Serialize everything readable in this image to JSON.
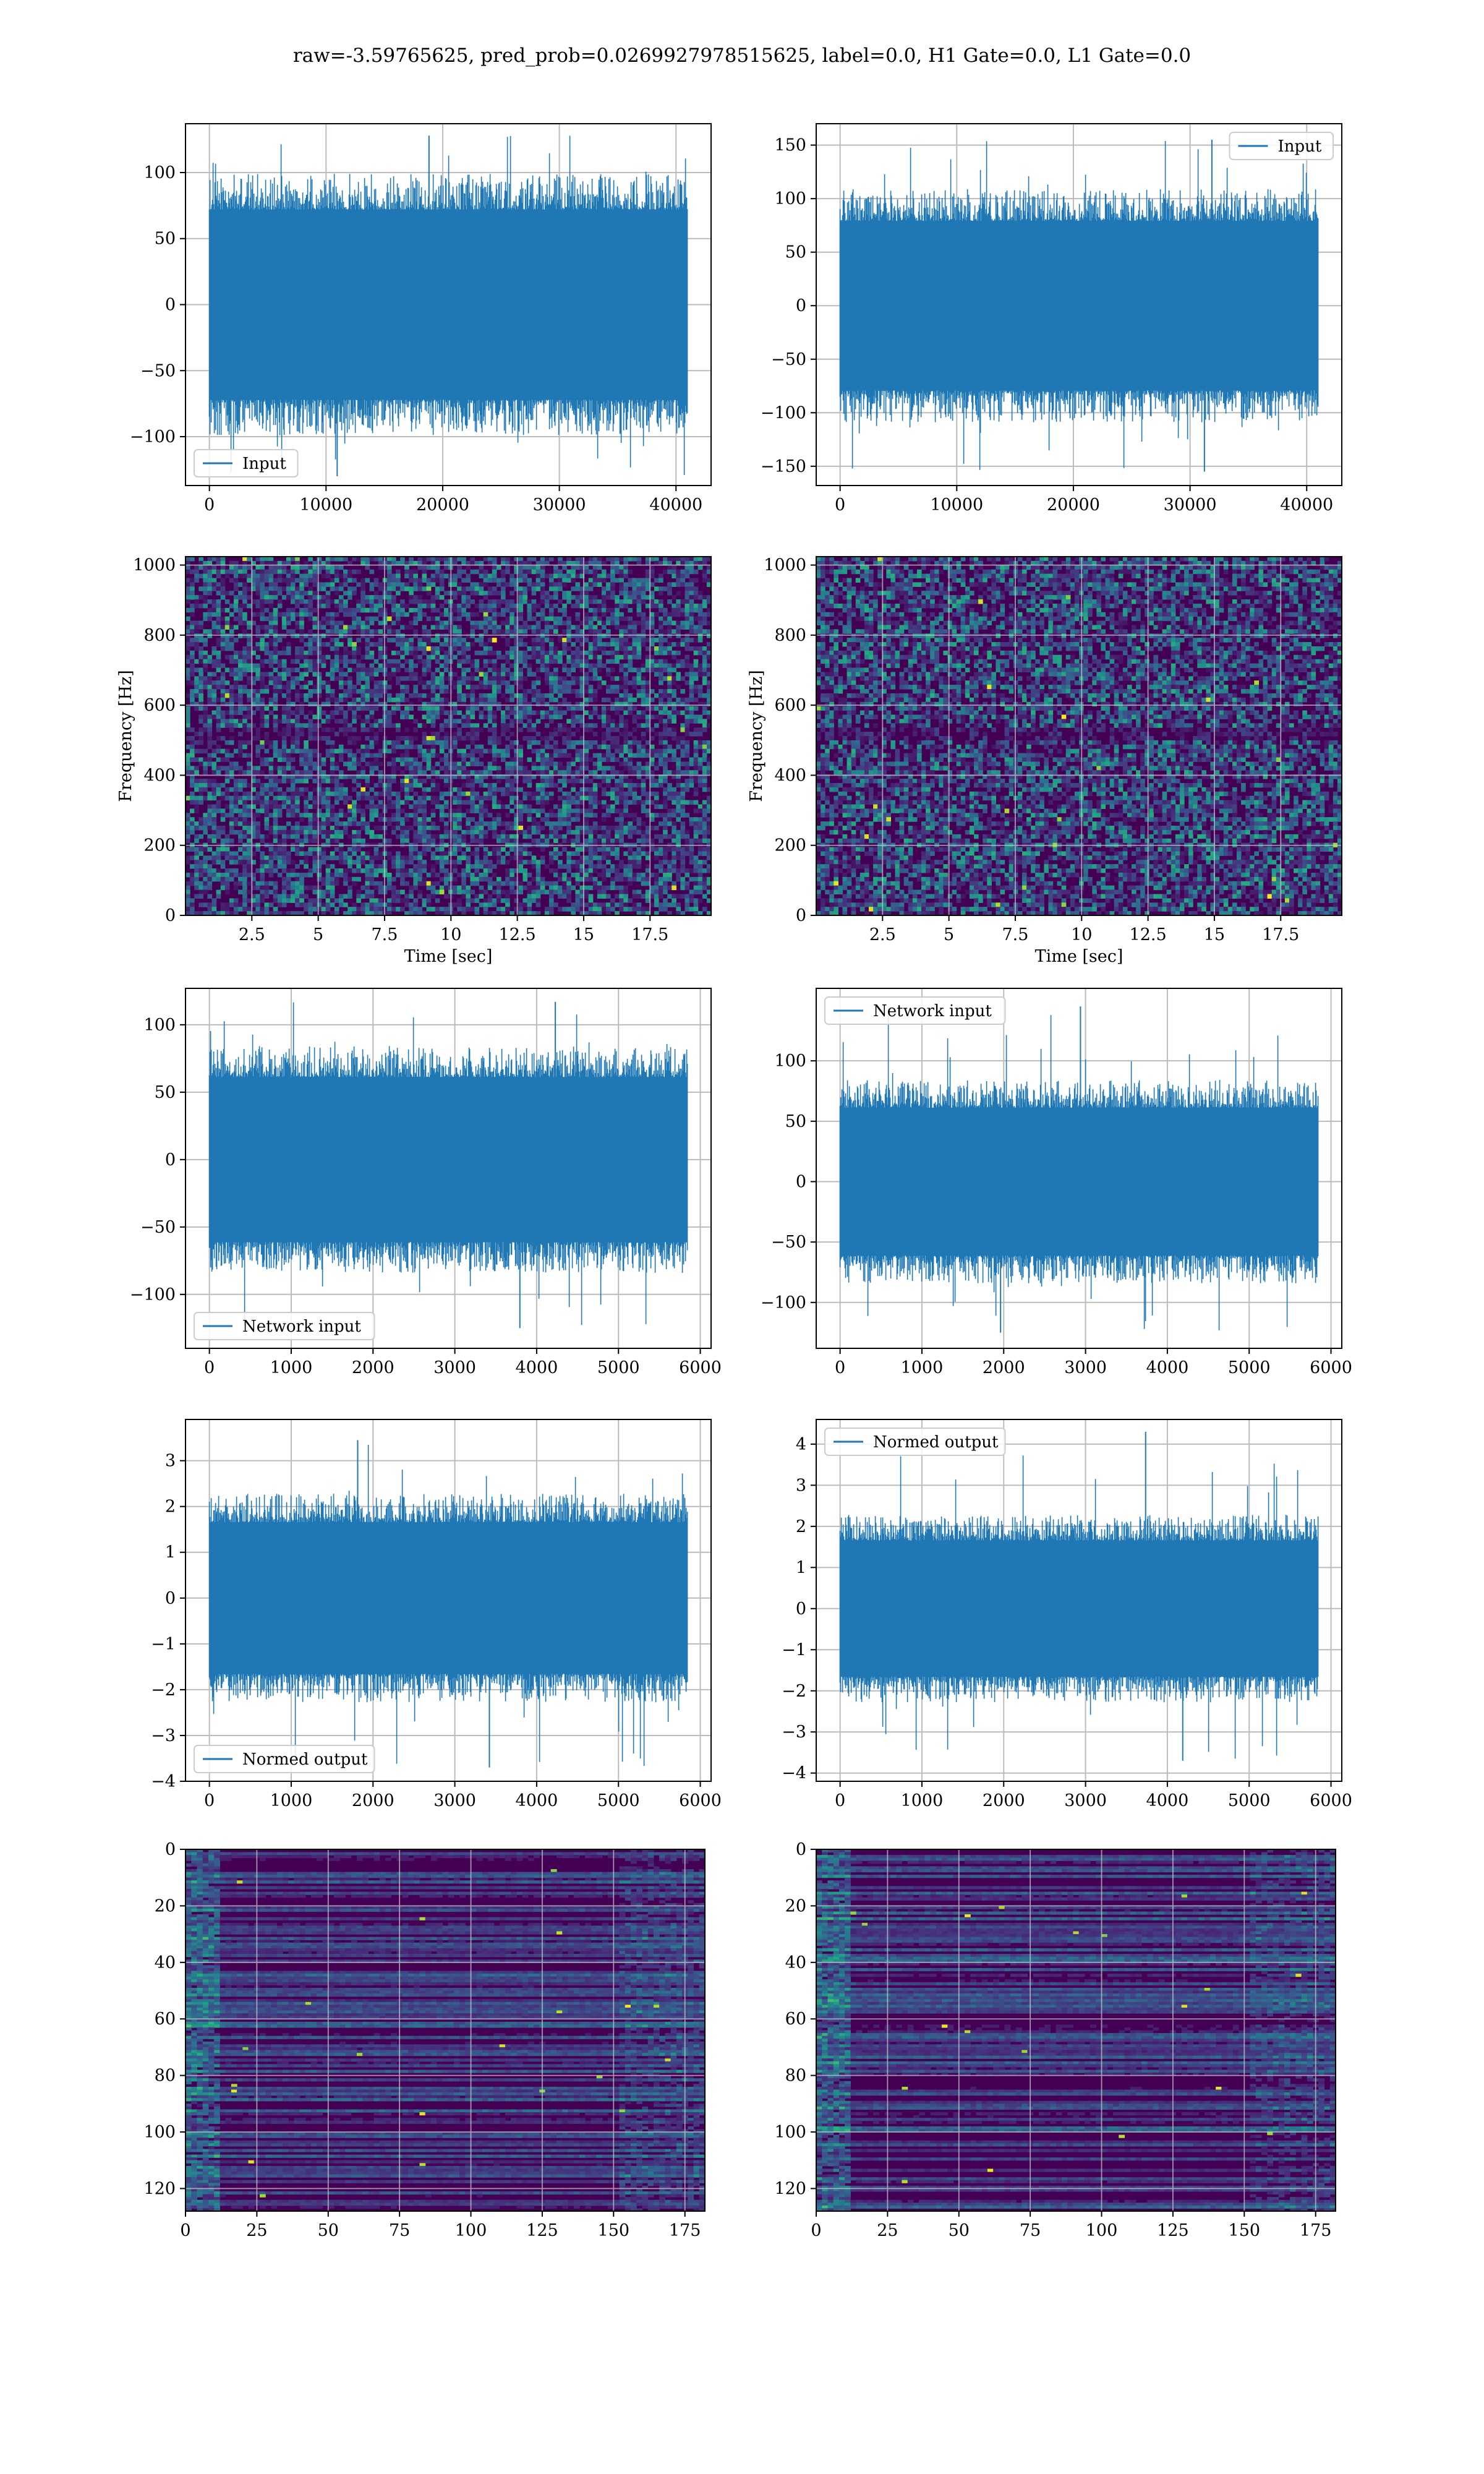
{
  "figure": {
    "suptitle": "raw=-3.59765625, pred_prob=0.0269927978515625, label=0.0, H1 Gate=0.0, L1 Gate=0.0"
  },
  "colors": {
    "line": "#1f77b4",
    "grid": "#b0b0b0",
    "viridis": [
      "#440154",
      "#472d7b",
      "#3b528b",
      "#2c728e",
      "#21918c",
      "#28ae80",
      "#5ec962",
      "#addc30",
      "#fde725"
    ]
  },
  "chart_data": [
    {
      "id": "p1",
      "type": "line",
      "x_range": [
        0,
        40960
      ],
      "xlim": [
        -2048,
        43008
      ],
      "ylim": [
        -137,
        137
      ],
      "xticks": [
        0,
        10000,
        20000,
        30000,
        40000
      ],
      "yticks": [
        -100,
        -50,
        0,
        50,
        100
      ],
      "series": [
        {
          "name": "Input",
          "amplitude": 100,
          "peak_min": -130,
          "peak_max": 128
        }
      ],
      "legend": "lower-left",
      "grid": true,
      "xlabel": "",
      "ylabel": ""
    },
    {
      "id": "p2",
      "type": "line",
      "x_range": [
        0,
        40960
      ],
      "xlim": [
        -2048,
        43008
      ],
      "ylim": [
        -168,
        170
      ],
      "xticks": [
        0,
        10000,
        20000,
        30000,
        40000
      ],
      "yticks": [
        -150,
        -100,
        -50,
        0,
        50,
        100,
        150
      ],
      "series": [
        {
          "name": "Input",
          "amplitude": 110,
          "peak_min": -155,
          "peak_max": 155
        }
      ],
      "legend": "upper-right",
      "grid": true,
      "xlabel": "",
      "ylabel": ""
    },
    {
      "id": "p3",
      "type": "heatmap",
      "xlim": [
        0,
        19.8
      ],
      "ylim": [
        0,
        1024
      ],
      "xticks": [
        2.5,
        5.0,
        7.5,
        10.0,
        12.5,
        15.0,
        17.5
      ],
      "yticks": [
        0,
        200,
        400,
        600,
        800,
        1000
      ],
      "xlabel": "Time [sec]",
      "ylabel": "Frequency [Hz]",
      "grid": true
    },
    {
      "id": "p4",
      "type": "heatmap",
      "xlim": [
        0,
        19.8
      ],
      "ylim": [
        0,
        1024
      ],
      "xticks": [
        2.5,
        5.0,
        7.5,
        10.0,
        12.5,
        15.0,
        17.5
      ],
      "yticks": [
        0,
        200,
        400,
        600,
        800,
        1000
      ],
      "xlabel": "Time [sec]",
      "ylabel": "Frequency [Hz]",
      "grid": true
    },
    {
      "id": "p5",
      "type": "line",
      "x_range": [
        0,
        5840
      ],
      "xlim": [
        -292,
        6132
      ],
      "ylim": [
        -140,
        127
      ],
      "xticks": [
        0,
        1000,
        2000,
        3000,
        4000,
        5000,
        6000
      ],
      "yticks": [
        -100,
        -50,
        0,
        50,
        100
      ],
      "series": [
        {
          "name": "Network input",
          "amplitude": 85,
          "peak_min": -125,
          "peak_max": 117
        }
      ],
      "legend": "lower-left",
      "grid": true,
      "xlabel": "",
      "ylabel": ""
    },
    {
      "id": "p6",
      "type": "line",
      "x_range": [
        0,
        5840
      ],
      "xlim": [
        -292,
        6132
      ],
      "ylim": [
        -138,
        160
      ],
      "xticks": [
        0,
        1000,
        2000,
        3000,
        4000,
        5000,
        6000
      ],
      "yticks": [
        -100,
        -50,
        0,
        50,
        100
      ],
      "series": [
        {
          "name": "Network input",
          "amplitude": 85,
          "peak_min": -125,
          "peak_max": 145
        }
      ],
      "legend": "upper-left",
      "grid": true,
      "xlabel": "",
      "ylabel": ""
    },
    {
      "id": "p7",
      "type": "line",
      "x_range": [
        0,
        5840
      ],
      "xlim": [
        -292,
        6132
      ],
      "ylim": [
        -4.0,
        3.9
      ],
      "xticks": [
        0,
        1000,
        2000,
        3000,
        4000,
        5000,
        6000
      ],
      "yticks": [
        -4,
        -3,
        -2,
        -1,
        0,
        1,
        2,
        3
      ],
      "series": [
        {
          "name": "Normed output",
          "amplitude": 2.3,
          "peak_min": -3.7,
          "peak_max": 3.45
        }
      ],
      "legend": "lower-left",
      "grid": true,
      "xlabel": "",
      "ylabel": ""
    },
    {
      "id": "p8",
      "type": "line",
      "x_range": [
        0,
        5840
      ],
      "xlim": [
        -292,
        6132
      ],
      "ylim": [
        -4.2,
        4.6
      ],
      "xticks": [
        0,
        1000,
        2000,
        3000,
        4000,
        5000,
        6000
      ],
      "yticks": [
        -4,
        -3,
        -2,
        -1,
        0,
        1,
        2,
        3,
        4
      ],
      "series": [
        {
          "name": "Normed output",
          "amplitude": 2.3,
          "peak_min": -3.7,
          "peak_max": 4.3
        }
      ],
      "legend": "upper-left",
      "grid": true,
      "xlabel": "",
      "ylabel": ""
    },
    {
      "id": "p9",
      "type": "heatmap",
      "xlim": [
        0,
        182
      ],
      "ylim": [
        128,
        0
      ],
      "xticks": [
        0,
        25,
        50,
        75,
        100,
        125,
        150,
        175
      ],
      "yticks": [
        0,
        20,
        40,
        60,
        80,
        100,
        120
      ],
      "grid": true,
      "xlabel": "",
      "ylabel": ""
    },
    {
      "id": "p10",
      "type": "heatmap",
      "xlim": [
        0,
        182
      ],
      "ylim": [
        128,
        0
      ],
      "xticks": [
        0,
        25,
        50,
        75,
        100,
        125,
        150,
        175
      ],
      "yticks": [
        0,
        20,
        40,
        60,
        80,
        100,
        120
      ],
      "grid": true,
      "xlabel": "",
      "ylabel": ""
    }
  ]
}
